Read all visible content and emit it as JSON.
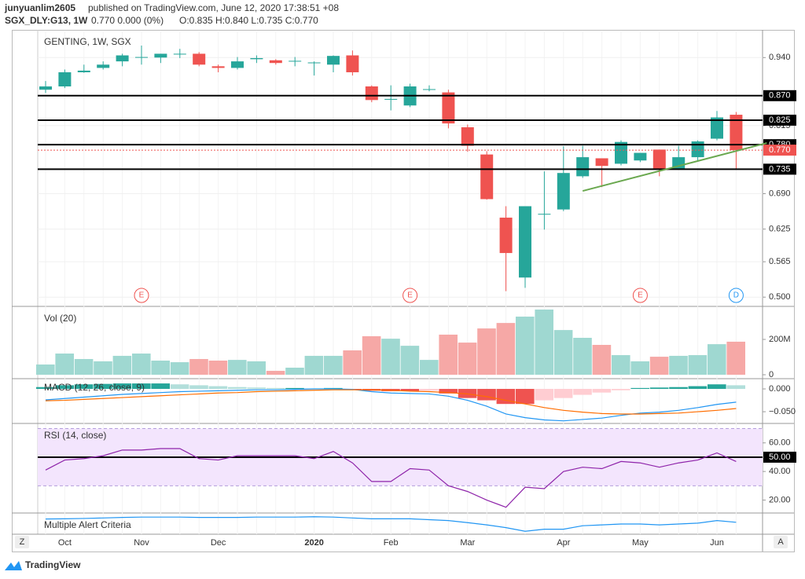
{
  "header": {
    "author": "junyuanlim2605",
    "published": "published on TradingView.com, June 12, 2020 17:38:51 +08",
    "symbol": "SGX_DLY:G13, 1W",
    "quote": "0.770 0.000 (0%)",
    "ohlc": "O:0.835 H:0.840 L:0.735 C:0.770"
  },
  "footer": "TradingView",
  "buttons": [
    "Z",
    "A"
  ],
  "chart_data": [
    {
      "type": "candlestick",
      "title": "GENTING, 1W, SGX",
      "categories": [
        null,
        "Oct",
        null,
        null,
        null,
        "Nov",
        null,
        null,
        null,
        "Dec",
        null,
        null,
        null,
        null,
        "2020",
        null,
        null,
        null,
        "Feb",
        null,
        null,
        null,
        "Mar",
        null,
        null,
        null,
        null,
        "Apr",
        null,
        null,
        null,
        "May",
        null,
        null,
        null,
        "Jun",
        null
      ],
      "open": [
        0.881,
        0.887,
        0.913,
        0.921,
        0.933,
        0.94,
        0.94,
        0.946,
        0.947,
        0.924,
        0.921,
        0.937,
        0.935,
        0.933,
        0.93,
        0.927,
        0.944,
        0.887,
        0.863,
        0.852,
        0.881,
        0.876,
        0.812,
        0.762,
        0.646,
        0.536,
        0.652,
        0.661,
        0.722,
        0.755,
        0.745,
        0.751,
        0.771,
        0.736,
        0.757,
        0.791,
        0.835
      ],
      "high": [
        0.897,
        0.918,
        0.927,
        0.933,
        0.947,
        0.962,
        0.947,
        0.956,
        0.95,
        0.927,
        0.941,
        0.944,
        0.937,
        0.941,
        0.933,
        0.944,
        0.953,
        0.889,
        0.889,
        0.892,
        0.889,
        0.881,
        0.817,
        0.768,
        0.667,
        0.667,
        0.731,
        0.777,
        0.778,
        0.755,
        0.788,
        0.765,
        0.771,
        0.778,
        0.788,
        0.842,
        0.84
      ],
      "low": [
        0.875,
        0.884,
        0.912,
        0.918,
        0.924,
        0.927,
        0.93,
        0.939,
        0.924,
        0.913,
        0.918,
        0.93,
        0.927,
        0.924,
        0.907,
        0.913,
        0.907,
        0.858,
        0.843,
        0.849,
        0.878,
        0.81,
        0.767,
        0.679,
        0.511,
        0.517,
        0.624,
        0.658,
        0.719,
        0.702,
        0.742,
        0.748,
        0.722,
        0.734,
        0.751,
        0.788,
        0.735
      ],
      "close": [
        0.887,
        0.913,
        0.916,
        0.927,
        0.944,
        0.941,
        0.947,
        0.947,
        0.927,
        0.921,
        0.933,
        0.939,
        0.93,
        0.934,
        0.931,
        0.943,
        0.913,
        0.862,
        0.864,
        0.887,
        0.882,
        0.819,
        0.778,
        0.68,
        0.581,
        0.667,
        0.653,
        0.728,
        0.757,
        0.741,
        0.785,
        0.765,
        0.734,
        0.757,
        0.786,
        0.83,
        0.77
      ],
      "ylim": [
        0.483,
        0.988
      ],
      "yticks": [
        {
          "value": 0.5,
          "label": "0.500"
        },
        {
          "value": 0.565,
          "label": "0.565"
        },
        {
          "value": 0.625,
          "label": "0.625"
        },
        {
          "value": 0.69,
          "label": "0.690"
        },
        {
          "value": 0.815,
          "label": "0.815"
        },
        {
          "value": 0.94,
          "label": "0.940"
        }
      ],
      "up_color": "#26a69a",
      "down_color": "#ef5350",
      "levels": [
        {
          "value": 0.87,
          "label": "0.870"
        },
        {
          "value": 0.825,
          "label": "0.825"
        },
        {
          "value": 0.78,
          "label": "0.780"
        },
        {
          "value": 0.735,
          "label": "0.735"
        }
      ],
      "last_price": {
        "value": 0.77,
        "label": "0.770"
      },
      "trendline": {
        "x": [
          28,
          37.6
        ],
        "values": [
          0.695,
          0.783
        ],
        "color": "#6aa84f"
      },
      "events": [
        {
          "index": 5,
          "label": "E",
          "color": "#ef5350"
        },
        {
          "index": 19,
          "label": "E",
          "color": "#ef5350"
        },
        {
          "index": 31,
          "label": "E",
          "color": "#ef5350"
        },
        {
          "index": 36,
          "label": "D",
          "color": "#2196f3"
        }
      ]
    },
    {
      "type": "bar",
      "title": "Vol (20)",
      "values": [
        58000000,
        120000000,
        89000000,
        76000000,
        107000000,
        120000000,
        80000000,
        71000000,
        89000000,
        80000000,
        84000000,
        76000000,
        22000000,
        40000000,
        107000000,
        107000000,
        138000000,
        218000000,
        204000000,
        164000000,
        84000000,
        227000000,
        182000000,
        262000000,
        293000000,
        329000000,
        369000000,
        253000000,
        209000000,
        169000000,
        111000000,
        76000000,
        102000000,
        107000000,
        111000000,
        173000000,
        187000000
      ],
      "ylim": [
        0,
        378000000
      ],
      "yticks": [
        0,
        {
          "value": 200000000,
          "label": "200M"
        }
      ],
      "up_color": "#9fd8d1",
      "down_color": "#f6a8a6"
    },
    {
      "type": "macd",
      "title": "MACD (12, 26, close, 9)",
      "histogram": [
        0.004,
        0.008,
        0.01,
        0.011,
        0.012,
        0.012,
        0.012,
        0.01,
        0.008,
        0.006,
        0.004,
        0.003,
        0.002,
        0.002,
        0.001,
        0.002,
        -0.002,
        -0.004,
        -0.005,
        -0.005,
        -0.004,
        -0.01,
        -0.02,
        -0.025,
        -0.033,
        -0.033,
        -0.025,
        -0.02,
        -0.013,
        -0.008,
        -0.003,
        0.002,
        0.003,
        0.004,
        0.006,
        0.01,
        0.008
      ],
      "hist_colors": [
        "#26a69a",
        "#b2dfdb",
        "#ef5350",
        "#ffcdd2"
      ],
      "macd": [
        -0.024,
        -0.021,
        -0.018,
        -0.015,
        -0.012,
        -0.01,
        -0.008,
        -0.006,
        -0.005,
        -0.004,
        -0.003,
        -0.002,
        -0.002,
        -0.001,
        0.0,
        0.0,
        -0.001,
        -0.006,
        -0.009,
        -0.01,
        -0.011,
        -0.016,
        -0.025,
        -0.038,
        -0.055,
        -0.063,
        -0.068,
        -0.07,
        -0.067,
        -0.064,
        -0.058,
        -0.053,
        -0.051,
        -0.047,
        -0.041,
        -0.034,
        -0.029
      ],
      "macd_color": "#2196f3",
      "signal": [
        -0.026,
        -0.025,
        -0.023,
        -0.021,
        -0.019,
        -0.017,
        -0.015,
        -0.013,
        -0.011,
        -0.009,
        -0.008,
        -0.006,
        -0.005,
        -0.004,
        -0.003,
        -0.002,
        -0.002,
        -0.002,
        -0.003,
        -0.005,
        -0.006,
        -0.008,
        -0.011,
        -0.017,
        -0.025,
        -0.033,
        -0.041,
        -0.047,
        -0.051,
        -0.054,
        -0.055,
        -0.055,
        -0.054,
        -0.053,
        -0.05,
        -0.047,
        -0.043
      ],
      "signal_color": "#ff6d00",
      "ylim": [
        -0.074,
        0.019
      ],
      "yticks": [
        {
          "value": 0,
          "label": "0.000"
        },
        {
          "value": -0.05,
          "label": "−0.050"
        }
      ]
    },
    {
      "type": "line",
      "title": "RSI (14, close)",
      "values": [
        41,
        48,
        49,
        51,
        55,
        55,
        56,
        56,
        49,
        48,
        51,
        51,
        51,
        51,
        49,
        54,
        46,
        33,
        33,
        42,
        41,
        30,
        26,
        20,
        15,
        29,
        28,
        40,
        43,
        42,
        47,
        46,
        43,
        46,
        48,
        53,
        47
      ],
      "color": "#8e24aa",
      "band": [
        30,
        70
      ],
      "band_color": "#f3e5fd",
      "midline": {
        "value": 50,
        "label": "50.00"
      },
      "ylim": [
        11.5,
        72.5
      ],
      "yticks": [
        {
          "value": 20,
          "label": "20.00"
        },
        {
          "value": 40,
          "label": "40.00"
        },
        {
          "value": 60,
          "label": "60.00"
        }
      ]
    },
    {
      "type": "line",
      "title": "Multiple Alert Criteria",
      "values": [
        0.79,
        0.8,
        0.82,
        0.85,
        0.88,
        0.9,
        0.9,
        0.9,
        0.88,
        0.88,
        0.88,
        0.9,
        0.9,
        0.9,
        0.92,
        0.9,
        0.85,
        0.8,
        0.8,
        0.8,
        0.75,
        0.7,
        0.58,
        0.45,
        0.29,
        0.08,
        0.2,
        0.2,
        0.4,
        0.45,
        0.5,
        0.5,
        0.45,
        0.5,
        0.55,
        0.7,
        0.6
      ],
      "color": "#2196f3",
      "ylim": [
        0,
        1
      ]
    }
  ]
}
